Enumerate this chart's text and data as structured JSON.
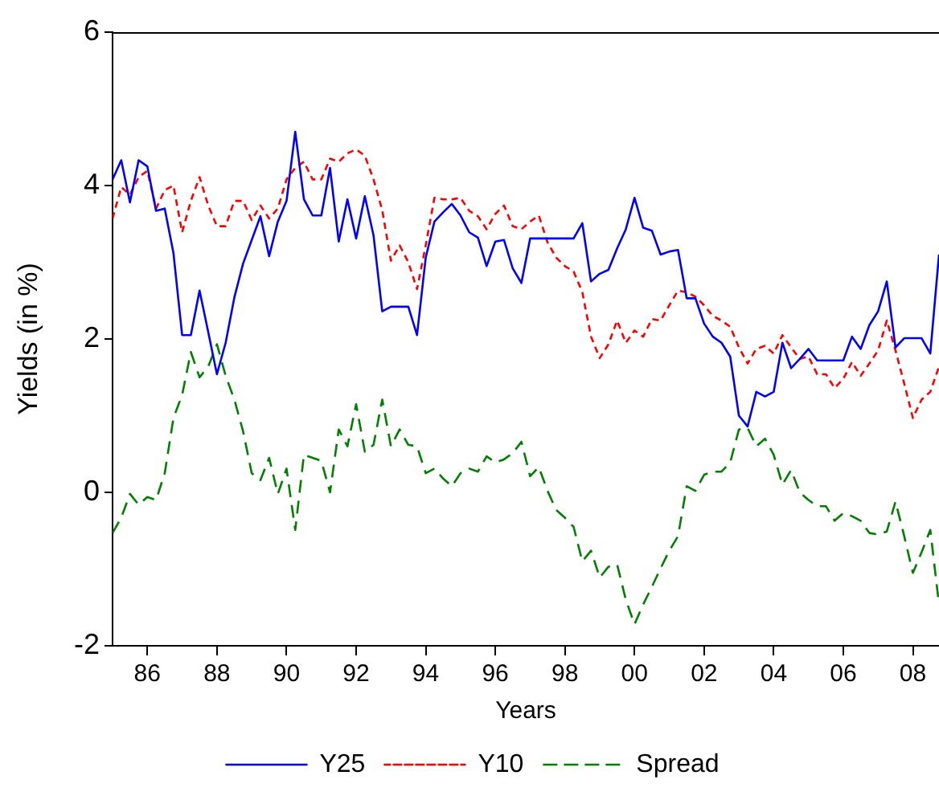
{
  "chart_data": {
    "type": "line",
    "xlabel": "Years",
    "ylabel": "Yields (in %)",
    "x": [
      1985,
      1985.25,
      1985.5,
      1985.75,
      1986,
      1986.25,
      1986.5,
      1986.75,
      1987,
      1987.25,
      1987.5,
      1987.75,
      1988,
      1988.25,
      1988.5,
      1988.75,
      1989,
      1989.25,
      1989.5,
      1989.75,
      1990,
      1990.25,
      1990.5,
      1990.75,
      1991,
      1991.25,
      1991.5,
      1991.75,
      1992,
      1992.25,
      1992.5,
      1992.75,
      1993,
      1993.25,
      1993.5,
      1993.75,
      1994,
      1994.25,
      1994.5,
      1994.75,
      1995,
      1995.25,
      1995.5,
      1995.75,
      1996,
      1996.25,
      1996.5,
      1996.75,
      1997,
      1997.25,
      1997.5,
      1997.75,
      1998,
      1998.25,
      1998.5,
      1998.75,
      1999,
      1999.25,
      1999.5,
      1999.75,
      2000,
      2000.25,
      2000.5,
      2000.75,
      2001,
      2001.25,
      2001.5,
      2001.75,
      2002,
      2002.25,
      2002.5,
      2002.75,
      2003,
      2003.25,
      2003.5,
      2003.75,
      2004,
      2004.25,
      2004.5,
      2004.75,
      2005,
      2005.25,
      2005.5,
      2005.75,
      2006,
      2006.25,
      2006.5,
      2006.75,
      2007,
      2007.25,
      2007.5,
      2007.75,
      2008,
      2008.25,
      2008.5,
      2008.75
    ],
    "series": [
      {
        "name": "Y25",
        "color": "#0000ff",
        "line_style": "solid",
        "values": [
          4.08,
          4.33,
          3.78,
          4.33,
          4.25,
          3.67,
          3.7,
          3.12,
          2.05,
          2.05,
          2.63,
          2.09,
          1.54,
          1.95,
          2.54,
          2.98,
          3.29,
          3.6,
          3.08,
          3.53,
          3.8,
          4.7,
          3.82,
          3.61,
          3.61,
          4.23,
          3.27,
          3.82,
          3.31,
          3.86,
          3.35,
          2.36,
          2.42,
          2.42,
          2.42,
          2.05,
          3.06,
          3.53,
          3.65,
          3.76,
          3.61,
          3.39,
          3.32,
          2.95,
          3.27,
          3.29,
          2.92,
          2.73,
          3.31,
          3.31,
          3.31,
          3.31,
          3.31,
          3.31,
          3.51,
          2.75,
          2.85,
          2.9,
          3.18,
          3.43,
          3.84,
          3.45,
          3.41,
          3.1,
          3.14,
          3.16,
          2.53,
          2.53,
          2.2,
          2.03,
          1.95,
          1.77,
          1.0,
          0.86,
          1.31,
          1.25,
          1.31,
          1.95,
          1.62,
          1.74,
          1.87,
          1.72,
          1.72,
          1.72,
          1.72,
          2.03,
          1.87,
          2.18,
          2.36,
          2.75,
          1.89,
          2.01,
          2.01,
          2.01,
          1.81,
          3.1
        ]
      },
      {
        "name": "Y10",
        "color": "#ff0000",
        "line_style": "dashed",
        "values": [
          3.57,
          3.98,
          3.88,
          4.11,
          4.19,
          3.7,
          3.94,
          4.0,
          3.39,
          3.8,
          4.11,
          3.74,
          3.47,
          3.47,
          3.8,
          3.8,
          3.55,
          3.74,
          3.57,
          3.7,
          4.08,
          4.23,
          4.31,
          4.08,
          4.08,
          4.35,
          4.31,
          4.42,
          4.47,
          4.39,
          4.08,
          3.68,
          3.02,
          3.22,
          3.0,
          2.65,
          3.22,
          3.84,
          3.82,
          3.82,
          3.84,
          3.67,
          3.6,
          3.43,
          3.63,
          3.74,
          3.47,
          3.43,
          3.53,
          3.61,
          3.26,
          3.06,
          2.95,
          2.88,
          2.61,
          2.03,
          1.75,
          1.93,
          2.24,
          1.95,
          2.11,
          2.03,
          2.26,
          2.24,
          2.44,
          2.63,
          2.61,
          2.55,
          2.44,
          2.3,
          2.24,
          2.16,
          1.89,
          1.68,
          1.87,
          1.91,
          1.81,
          2.05,
          1.89,
          1.74,
          1.77,
          1.54,
          1.54,
          1.36,
          1.48,
          1.7,
          1.52,
          1.68,
          1.85,
          2.24,
          1.85,
          1.42,
          0.97,
          1.21,
          1.31,
          1.64
        ]
      },
      {
        "name": "Spread",
        "color": "#008000",
        "line_style": "dashed",
        "values": [
          -0.53,
          -0.33,
          -0.02,
          -0.16,
          -0.06,
          -0.1,
          0.25,
          0.97,
          1.27,
          1.83,
          1.5,
          1.64,
          1.93,
          1.52,
          1.21,
          0.8,
          0.25,
          0.16,
          0.45,
          -0.02,
          0.31,
          -0.49,
          0.49,
          0.45,
          0.41,
          0.0,
          0.82,
          0.6,
          1.15,
          0.53,
          0.62,
          1.21,
          0.6,
          0.82,
          0.62,
          0.6,
          0.25,
          0.31,
          0.18,
          0.08,
          0.25,
          0.31,
          0.27,
          0.47,
          0.39,
          0.43,
          0.51,
          0.66,
          0.21,
          0.33,
          0.02,
          -0.23,
          -0.33,
          -0.45,
          -0.9,
          -0.76,
          -1.11,
          -0.97,
          -0.94,
          -1.4,
          -1.72,
          -1.46,
          -1.23,
          -0.99,
          -0.76,
          -0.57,
          0.08,
          0.02,
          0.23,
          0.27,
          0.27,
          0.39,
          0.82,
          0.84,
          0.6,
          0.7,
          0.49,
          0.1,
          0.29,
          0.0,
          -0.1,
          -0.18,
          -0.18,
          -0.37,
          -0.27,
          -0.31,
          -0.37,
          -0.53,
          -0.55,
          -0.51,
          -0.12,
          -0.57,
          -1.05,
          -0.78,
          -0.49,
          -1.46
        ]
      }
    ],
    "xlim": [
      1985,
      2008.75
    ],
    "xticks": [
      {
        "value": 1986,
        "label": "86"
      },
      {
        "value": 1988,
        "label": "88"
      },
      {
        "value": 1990,
        "label": "90"
      },
      {
        "value": 1992,
        "label": "92"
      },
      {
        "value": 1994,
        "label": "94"
      },
      {
        "value": 1996,
        "label": "96"
      },
      {
        "value": 1998,
        "label": "98"
      },
      {
        "value": 2000,
        "label": "00"
      },
      {
        "value": 2002,
        "label": "02"
      },
      {
        "value": 2004,
        "label": "04"
      },
      {
        "value": 2006,
        "label": "06"
      },
      {
        "value": 2008,
        "label": "08"
      }
    ],
    "ylim": [
      -2,
      6
    ],
    "yticks": [
      -2,
      0,
      2,
      4,
      6
    ],
    "grid": false,
    "legend": "bottom",
    "marker": "none"
  }
}
